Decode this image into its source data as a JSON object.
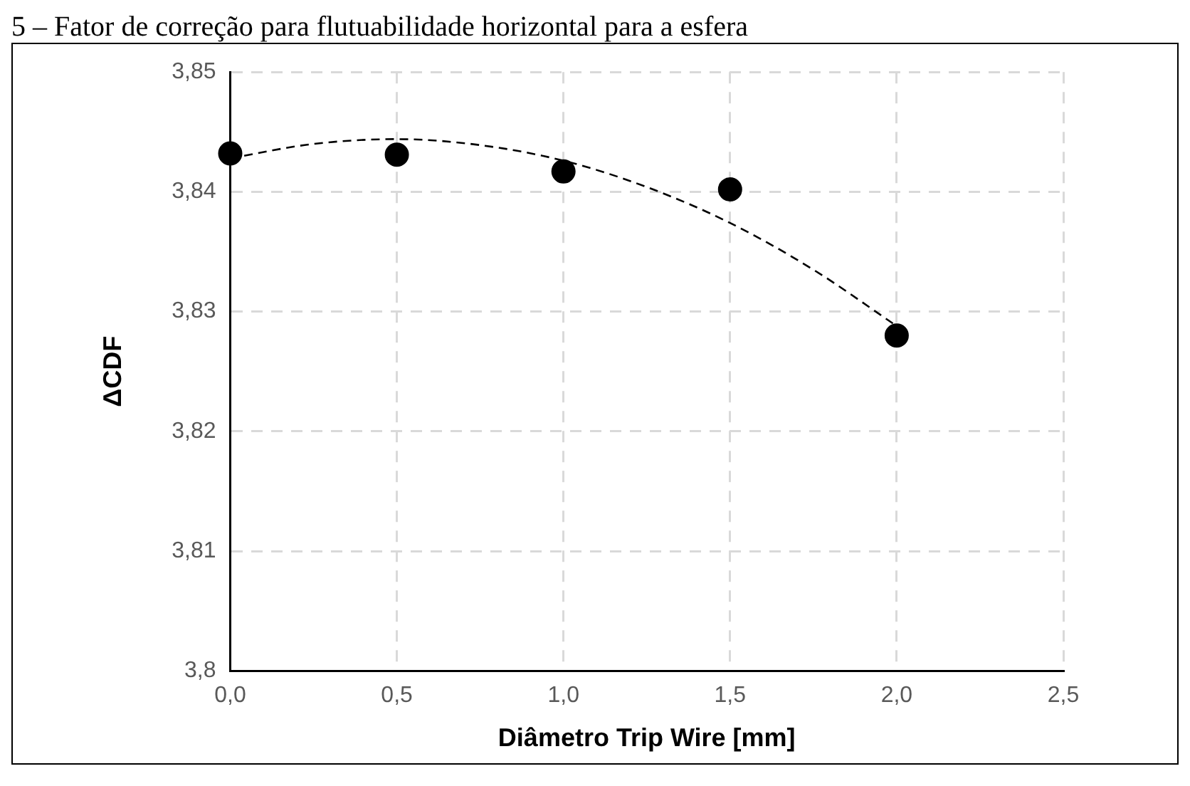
{
  "chart_data": {
    "type": "scatter",
    "title": "5 – Fator de correção para flutuabilidade horizontal para a esfera",
    "xlabel": "Diâmetro Trip Wire [mm]",
    "ylabel": "ΔCDF",
    "x": [
      0,
      0.5,
      1.0,
      1.5,
      2.0
    ],
    "series": [
      {
        "type": "scatter",
        "color": "#000000",
        "marker": "circle",
        "values": [
          3.8432,
          3.8431,
          3.8417,
          3.8402,
          3.828
        ]
      },
      {
        "type": "line",
        "color": "#000000",
        "line_style": "dashed",
        "marker": "none",
        "x": [
          0,
          0.25,
          0.5,
          0.75,
          1.0,
          1.25,
          1.5,
          1.75,
          2.0
        ],
        "values": [
          3.8428,
          3.844,
          3.8444,
          3.8439,
          3.8426,
          3.8404,
          3.8374,
          3.8335,
          3.8288
        ]
      }
    ],
    "xlim": [
      0,
      2.5
    ],
    "xticks": [
      {
        "value": 0,
        "label": "0,0"
      },
      {
        "value": 0.5,
        "label": "0,5"
      },
      {
        "value": 1,
        "label": "1,0"
      },
      {
        "value": 1.5,
        "label": "1,5"
      },
      {
        "value": 2,
        "label": "2,0"
      },
      {
        "value": 2.5,
        "label": "2,5"
      }
    ],
    "ylim": [
      3.8,
      3.85
    ],
    "yticks": [
      {
        "value": 3.8,
        "label": "3,8"
      },
      {
        "value": 3.81,
        "label": "3,81"
      },
      {
        "value": 3.82,
        "label": "3,82"
      },
      {
        "value": 3.83,
        "label": "3,83"
      },
      {
        "value": 3.84,
        "label": "3,84"
      },
      {
        "value": 3.85,
        "label": "3,85"
      }
    ],
    "grid": true,
    "legend": false
  }
}
